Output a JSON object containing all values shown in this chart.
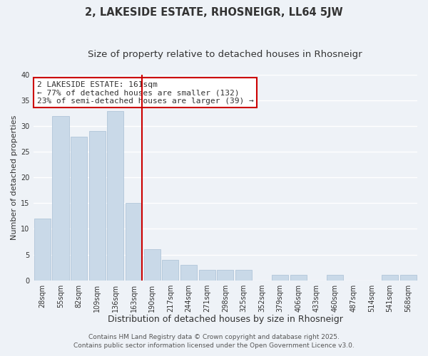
{
  "title": "2, LAKESIDE ESTATE, RHOSNEIGR, LL64 5JW",
  "subtitle": "Size of property relative to detached houses in Rhosneigr",
  "xlabel": "Distribution of detached houses by size in Rhosneigr",
  "ylabel": "Number of detached properties",
  "bar_labels": [
    "28sqm",
    "55sqm",
    "82sqm",
    "109sqm",
    "136sqm",
    "163sqm",
    "190sqm",
    "217sqm",
    "244sqm",
    "271sqm",
    "298sqm",
    "325sqm",
    "352sqm",
    "379sqm",
    "406sqm",
    "433sqm",
    "460sqm",
    "487sqm",
    "514sqm",
    "541sqm",
    "568sqm"
  ],
  "bar_values": [
    12,
    32,
    28,
    29,
    33,
    15,
    6,
    4,
    3,
    2,
    2,
    2,
    0,
    1,
    1,
    0,
    1,
    0,
    0,
    1,
    1
  ],
  "bar_color": "#c9d9e8",
  "bar_edgecolor": "#a8bfd4",
  "vline_x_index": 5,
  "vline_color": "#cc0000",
  "annotation_line1": "2 LAKESIDE ESTATE: 161sqm",
  "annotation_line2": "← 77% of detached houses are smaller (132)",
  "annotation_line3": "23% of semi-detached houses are larger (39) →",
  "annotation_box_edgecolor": "#cc0000",
  "annotation_box_facecolor": "#ffffff",
  "ylim": [
    0,
    40
  ],
  "yticks": [
    0,
    5,
    10,
    15,
    20,
    25,
    30,
    35,
    40
  ],
  "background_color": "#eef2f7",
  "grid_color": "#ffffff",
  "footer_line1": "Contains HM Land Registry data © Crown copyright and database right 2025.",
  "footer_line2": "Contains public sector information licensed under the Open Government Licence v3.0.",
  "title_fontsize": 10.5,
  "subtitle_fontsize": 9.5,
  "xlabel_fontsize": 9,
  "ylabel_fontsize": 8,
  "tick_fontsize": 7,
  "annotation_fontsize": 8,
  "footer_fontsize": 6.5
}
